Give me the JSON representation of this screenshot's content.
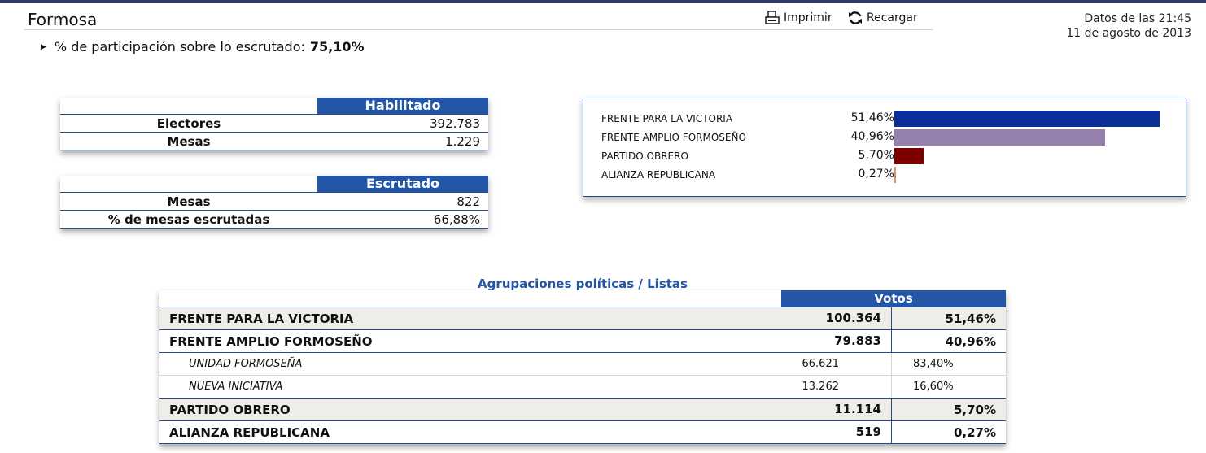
{
  "header": {
    "title": "Formosa",
    "print_label": "Imprimir",
    "reload_label": "Recargar",
    "data_time_line": "Datos de las 21:45",
    "data_date_line": "11 de agosto de 2013"
  },
  "participation": {
    "label": "% de participación sobre lo escrutado:",
    "value": "75,10%"
  },
  "habilitado": {
    "header": "Habilitado",
    "rows": [
      {
        "label": "Electores",
        "value": "392.783"
      },
      {
        "label": "Mesas",
        "value": "1.229"
      }
    ]
  },
  "escrutado": {
    "header": "Escrutado",
    "rows": [
      {
        "label": "Mesas",
        "value": "822"
      },
      {
        "label": "% de mesas escrutadas",
        "value": "66,88%"
      }
    ]
  },
  "chart_data": {
    "type": "bar",
    "orientation": "horizontal",
    "categories": [
      "FRENTE PARA LA VICTORIA",
      "FRENTE AMPLIO FORMOSEÑO",
      "PARTIDO OBRERO",
      "ALIANZA REPUBLICANA"
    ],
    "values": [
      51.46,
      40.96,
      5.7,
      0.27
    ],
    "value_labels": [
      "51,46%",
      "40,96%",
      "5,70%",
      "0,27%"
    ],
    "colors": [
      "#0a2f96",
      "#9580ae",
      "#7c0000",
      "#e0905a"
    ],
    "xlim": [
      0,
      51.46
    ]
  },
  "results": {
    "title": "Agrupaciones políticas / Listas",
    "votes_header": "Votos",
    "rows": [
      {
        "name": "FRENTE PARA LA VICTORIA",
        "votes": "100.364",
        "pct": "51,46%",
        "kind": "party"
      },
      {
        "name": "FRENTE AMPLIO FORMOSEÑO",
        "votes": "79.883",
        "pct": "40,96%",
        "kind": "party"
      },
      {
        "name": "UNIDAD FORMOSEÑA",
        "votes": "66.621",
        "pct": "83,40%",
        "kind": "list"
      },
      {
        "name": "NUEVA INICIATIVA",
        "votes": "13.262",
        "pct": "16,60%",
        "kind": "list"
      },
      {
        "name": "PARTIDO OBRERO",
        "votes": "11.114",
        "pct": "5,70%",
        "kind": "party"
      },
      {
        "name": "ALIANZA REPUBLICANA",
        "votes": "519",
        "pct": "0,27%",
        "kind": "party"
      }
    ]
  }
}
